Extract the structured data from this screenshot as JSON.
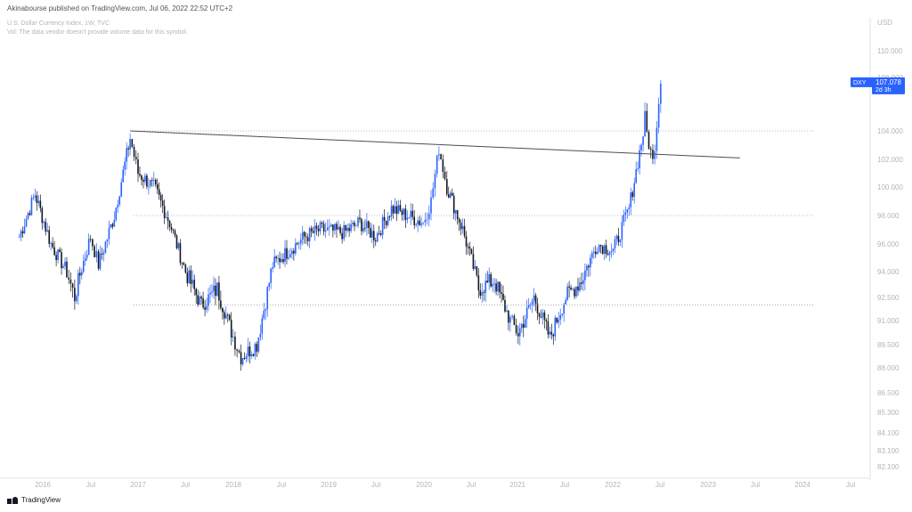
{
  "header": {
    "publisher_line": "Akinabourse published on TradingView.com, Jul 06, 2022 22:52 UTC+2"
  },
  "symbol_info": {
    "title": "U.S. Dollar Currency Index, 1W, TVC",
    "volume_note": "Vol: The data vendor doesn't provide volume data for this symbol."
  },
  "price_tag": {
    "ticker": "DXY",
    "price": "107.078",
    "countdown": "2d 3h",
    "color": "#2962ff"
  },
  "footer": {
    "brand": "TradingView"
  },
  "chart_data": {
    "type": "candlestick",
    "currency_label": "USD",
    "y_ticks": [
      "110.000",
      "108.000",
      "106.000",
      "104.000",
      "102.000",
      "100.000",
      "98.000",
      "96.000",
      "94.000",
      "92.500",
      "91.000",
      "89.500",
      "88.000",
      "86.500",
      "85.300",
      "84.100",
      "83.100",
      "82.100"
    ],
    "x_ticks": [
      "2016",
      "Jul",
      "2017",
      "Jul",
      "2018",
      "Jul",
      "2019",
      "Jul",
      "2020",
      "Jul",
      "2021",
      "Jul",
      "2022",
      "Jul",
      "2023",
      "Jul",
      "2024",
      "Jul"
    ],
    "ylim": [
      82.1,
      110
    ],
    "last_price": 107.078,
    "up_color": "#2962ff",
    "down_color": "#131722",
    "weekly_close_path": [
      [
        "2015-10",
        96.5
      ],
      [
        "2015-12",
        99.5
      ],
      [
        "2016-02",
        96.0
      ],
      [
        "2016-04",
        94.0
      ],
      [
        "2016-05",
        92.5
      ],
      [
        "2016-07",
        96.5
      ],
      [
        "2016-08",
        94.5
      ],
      [
        "2016-10",
        98.0
      ],
      [
        "2016-12",
        103.5
      ],
      [
        "2017-01",
        101.0
      ],
      [
        "2017-03",
        100.0
      ],
      [
        "2017-05",
        97.5
      ],
      [
        "2017-07",
        94.0
      ],
      [
        "2017-09",
        92.0
      ],
      [
        "2017-11",
        93.0
      ],
      [
        "2018-01",
        90.0
      ],
      [
        "2018-02",
        88.7
      ],
      [
        "2018-04",
        89.5
      ],
      [
        "2018-06",
        94.5
      ],
      [
        "2018-08",
        95.5
      ],
      [
        "2018-10",
        96.5
      ],
      [
        "2018-12",
        97.0
      ],
      [
        "2019-03",
        96.8
      ],
      [
        "2019-05",
        97.5
      ],
      [
        "2019-07",
        96.5
      ],
      [
        "2019-09",
        98.5
      ],
      [
        "2019-11",
        98.0
      ],
      [
        "2020-01",
        97.5
      ],
      [
        "2020-02",
        99.0
      ],
      [
        "2020-03",
        102.8
      ],
      [
        "2020-04",
        100.0
      ],
      [
        "2020-06",
        97.0
      ],
      [
        "2020-08",
        93.0
      ],
      [
        "2020-10",
        93.5
      ],
      [
        "2020-12",
        91.0
      ],
      [
        "2021-01",
        90.2
      ],
      [
        "2021-03",
        92.5
      ],
      [
        "2021-05",
        89.9
      ],
      [
        "2021-07",
        92.5
      ],
      [
        "2021-09",
        93.5
      ],
      [
        "2021-11",
        96.0
      ],
      [
        "2022-01",
        95.5
      ],
      [
        "2022-03",
        98.5
      ],
      [
        "2022-05",
        104.5
      ],
      [
        "2022-06",
        101.8
      ],
      [
        "2022-07",
        107.078
      ]
    ],
    "horizontal_levels": [
      104.0,
      98.0,
      92.0
    ],
    "trendline": [
      [
        "2016-12",
        104.0
      ],
      [
        "2023-05",
        102.1
      ]
    ]
  }
}
